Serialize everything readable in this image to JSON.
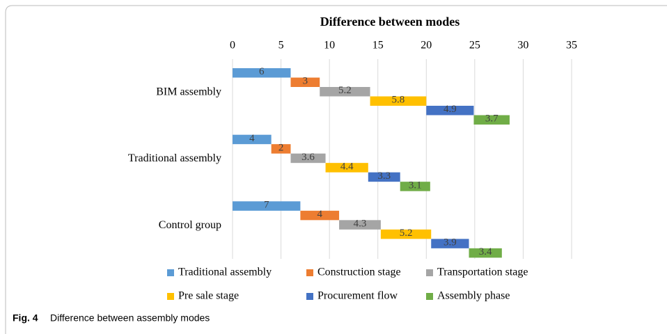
{
  "chart_data": {
    "type": "bar",
    "orientation": "horizontal",
    "layout": "waterfall",
    "title": "Difference between modes",
    "categories": [
      "BIM assembly",
      "Traditional assembly",
      "Control group"
    ],
    "series": [
      {
        "name": "Traditional assembly",
        "color": "#5b9bd5",
        "values": [
          6,
          4,
          7
        ]
      },
      {
        "name": "Construction stage",
        "color": "#ed7d31",
        "values": [
          3,
          2,
          4
        ]
      },
      {
        "name": "Transportation stage",
        "color": "#a5a5a5",
        "values": [
          5.2,
          3.6,
          4.3
        ]
      },
      {
        "name": "Pre sale stage",
        "color": "#ffc000",
        "values": [
          5.8,
          4.4,
          5.2
        ]
      },
      {
        "name": "Procurement flow",
        "color": "#4472c4",
        "values": [
          4.9,
          3.3,
          3.9
        ]
      },
      {
        "name": "Assembly phase",
        "color": "#70ad47",
        "values": [
          3.7,
          3.1,
          3.4
        ]
      }
    ],
    "xlim": [
      0,
      35
    ],
    "xticks": [
      0,
      5,
      10,
      15,
      20,
      25,
      30,
      35
    ],
    "grid": true,
    "legend": "bottom"
  },
  "caption": {
    "label": "Fig. 4",
    "text": "Difference between assembly modes"
  }
}
